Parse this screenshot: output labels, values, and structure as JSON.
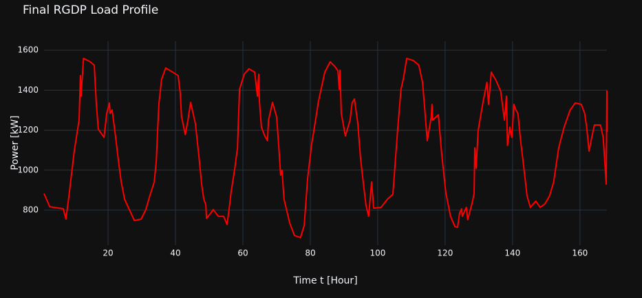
{
  "chart_data": {
    "type": "line",
    "title": "Final RGDP Load Profile",
    "x_label": "Time t [Hour]",
    "y_label": "Power [kW]",
    "xlim": [
      1,
      168
    ],
    "ylim": [
      625,
      1645
    ],
    "xticks": [
      20,
      40,
      60,
      80,
      100,
      120,
      140,
      160
    ],
    "yticks": [
      800,
      1000,
      1200,
      1400,
      1600
    ],
    "grid": true,
    "series": [
      {
        "color": "#ff0000",
        "x": [
          1,
          2.7,
          6.7,
          7.5,
          8.4,
          10,
          11.4,
          11.8,
          12,
          12.7,
          14.7,
          15.9,
          16.5,
          17.1,
          18.8,
          19.6,
          20.4,
          20.6,
          21.2,
          22,
          23.1,
          23.9,
          24.9,
          26.3,
          27.8,
          29.8,
          31.2,
          32.4,
          33.7,
          34.3,
          34.7,
          35.1,
          35.9,
          37.1,
          38.8,
          40.8,
          41.4,
          41.8,
          42.9,
          43.7,
          44.5,
          45.9,
          46.9,
          47.8,
          48.4,
          49,
          49.2,
          50.2,
          51.2,
          52.7,
          54.3,
          55.3,
          55.9,
          56.5,
          57.6,
          58.4,
          59,
          60.4,
          61.8,
          63.5,
          64.3,
          64.7,
          64.9,
          65.5,
          66.5,
          67.3,
          67.6,
          68.8,
          70,
          70.6,
          71.2,
          71.6,
          72.2,
          73.9,
          75.3,
          77.1,
          78.2,
          79.2,
          80.4,
          81.4,
          82.4,
          84.3,
          85.9,
          87.3,
          88.2,
          88.6,
          88.8,
          89.2,
          90.4,
          91.8,
          92.4,
          93.1,
          94.1,
          94.9,
          95.7,
          96.5,
          97.3,
          98.2,
          98.8,
          101,
          102.9,
          104.5,
          105.9,
          106.9,
          107.6,
          108.6,
          110.6,
          112.2,
          113.3,
          113.9,
          114.7,
          115.9,
          116.1,
          116.3,
          118,
          119,
          120.2,
          121.6,
          122.9,
          123.7,
          124.3,
          124.9,
          125.1,
          126.3,
          126.7,
          128,
          128.6,
          128.8,
          129.2,
          129.8,
          131.2,
          132.4,
          132.9,
          133.7,
          135.1,
          136.5,
          137.6,
          138.2,
          138.5,
          139.2,
          139.8,
          140.4,
          141,
          141.6,
          142.4,
          143.5,
          144.3,
          145.3,
          146.9,
          148.2,
          149.6,
          151,
          152.2,
          153.7,
          155.3,
          157.1,
          158.6,
          160.4,
          161.4,
          162,
          162.7,
          163.5,
          164.3,
          166.1,
          166.9,
          167.3,
          167.8,
          168,
          168
        ],
        "values": [
          883,
          817,
          807,
          755,
          872,
          1100,
          1250,
          1473,
          1370,
          1559,
          1542,
          1525,
          1336,
          1205,
          1164,
          1284,
          1336,
          1284,
          1301,
          1198,
          1044,
          941,
          855,
          803,
          748,
          755,
          803,
          872,
          941,
          1044,
          1198,
          1336,
          1456,
          1511,
          1494,
          1473,
          1387,
          1267,
          1178,
          1250,
          1339,
          1233,
          1078,
          924,
          855,
          827,
          759,
          779,
          803,
          769,
          769,
          728,
          803,
          889,
          1009,
          1112,
          1404,
          1480,
          1507,
          1490,
          1370,
          1480,
          1346,
          1215,
          1171,
          1147,
          1250,
          1339,
          1267,
          1130,
          975,
          1000,
          855,
          735,
          673,
          663,
          724,
          958,
          1130,
          1233,
          1342,
          1490,
          1542,
          1518,
          1497,
          1404,
          1500,
          1284,
          1171,
          1250,
          1336,
          1356,
          1233,
          1061,
          941,
          827,
          769,
          941,
          810,
          814,
          855,
          879,
          1198,
          1404,
          1456,
          1559,
          1548,
          1525,
          1439,
          1318,
          1147,
          1267,
          1329,
          1250,
          1277,
          1078,
          889,
          769,
          718,
          714,
          786,
          807,
          769,
          814,
          752,
          834,
          883,
          1112,
          1009,
          1198,
          1336,
          1439,
          1329,
          1490,
          1449,
          1394,
          1250,
          1370,
          1123,
          1215,
          1164,
          1329,
          1301,
          1284,
          1147,
          992,
          872,
          814,
          845,
          814,
          831,
          872,
          941,
          1112,
          1215,
          1301,
          1336,
          1329,
          1284,
          1215,
          1095,
          1164,
          1226,
          1226,
          1164,
          1061,
          930,
          1397,
          1191
        ]
      }
    ]
  }
}
